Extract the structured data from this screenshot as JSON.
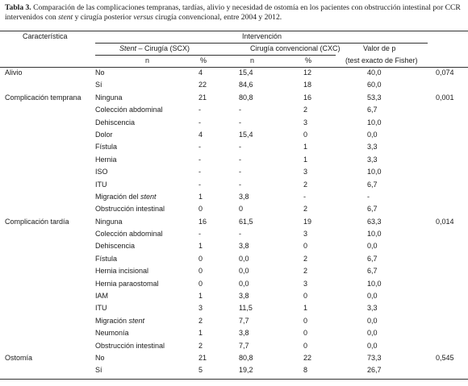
{
  "caption": {
    "label": "Tabla 3.",
    "text_a": " Comparación de las complicaciones tempranas, tardías, alivio y necesidad de ostomía en los pacientes con obstrucción intestinal por CCR intervenidos con ",
    "text_stent": "stent",
    "text_b": " y cirugía posterior ",
    "text_versus": "versus",
    "text_c": " cirugía convencional, entre 2004 y 2012."
  },
  "header": {
    "caracteristica": "Característica",
    "intervencion": "Intervención",
    "scx_italic": "Stent",
    "scx_rest": " – Cirugía (SCX)",
    "cxc": "Cirugía convencional (CXC)",
    "valor_p": "Valor de p",
    "test": "(test exacto de Fisher)",
    "n1": "n",
    "pct1": "%",
    "n2": "n",
    "pct2": "%"
  },
  "rows": [
    {
      "c0": "Alivio",
      "c1": "No",
      "n1": "4",
      "p1": "15,4",
      "n2": "12",
      "p2": "40,0",
      "pv": "0,074"
    },
    {
      "c0": "",
      "c1": "Sí",
      "n1": "22",
      "p1": "84,6",
      "n2": "18",
      "p2": "60,0",
      "pv": ""
    },
    {
      "c0": "Complicación temprana",
      "c1": "Ninguna",
      "n1": "21",
      "p1": "80,8",
      "n2": "16",
      "p2": "53,3",
      "pv": "0,001"
    },
    {
      "c0": "",
      "c1": "Colección abdominal",
      "n1": "-",
      "p1": "-",
      "n2": "2",
      "p2": "6,7",
      "pv": ""
    },
    {
      "c0": "",
      "c1": "Dehiscencia",
      "n1": "-",
      "p1": "-",
      "n2": "3",
      "p2": "10,0",
      "pv": ""
    },
    {
      "c0": "",
      "c1": "Dolor",
      "n1": "4",
      "p1": "15,4",
      "n2": "0",
      "p2": "0,0",
      "pv": ""
    },
    {
      "c0": "",
      "c1": "Fístula",
      "n1": "-",
      "p1": "-",
      "n2": "1",
      "p2": "3,3",
      "pv": ""
    },
    {
      "c0": "",
      "c1": "Hernia",
      "n1": "-",
      "p1": "-",
      "n2": "1",
      "p2": "3,3",
      "pv": ""
    },
    {
      "c0": "",
      "c1": "ISO",
      "n1": "-",
      "p1": "-",
      "n2": "3",
      "p2": "10,0",
      "pv": ""
    },
    {
      "c0": "",
      "c1": "ITU",
      "n1": "-",
      "p1": "-",
      "n2": "2",
      "p2": "6,7",
      "pv": ""
    },
    {
      "c0": "",
      "c1": "Migración del ",
      "c1i": "stent",
      "n1": "1",
      "p1": "3,8",
      "n2": "-",
      "p2": "-",
      "pv": ""
    },
    {
      "c0": "",
      "c1": "Obstrucción intestinal",
      "n1": "0",
      "p1": "0",
      "n2": "2",
      "p2": "6,7",
      "pv": ""
    },
    {
      "c0": "Complicación tardía",
      "c1": "Ninguna",
      "n1": "16",
      "p1": "61,5",
      "n2": "19",
      "p2": "63,3",
      "pv": "0,014"
    },
    {
      "c0": "",
      "c1": "Colección abdominal",
      "n1": "-",
      "p1": "-",
      "n2": "3",
      "p2": "10,0",
      "pv": ""
    },
    {
      "c0": "",
      "c1": "Dehiscencia",
      "n1": "1",
      "p1": "3,8",
      "n2": "0",
      "p2": "0,0",
      "pv": ""
    },
    {
      "c0": "",
      "c1": "Fístula",
      "n1": "0",
      "p1": "0,0",
      "n2": "2",
      "p2": "6,7",
      "pv": ""
    },
    {
      "c0": "",
      "c1": "Hernia incisional",
      "n1": "0",
      "p1": "0,0",
      "n2": "2",
      "p2": "6,7",
      "pv": ""
    },
    {
      "c0": "",
      "c1": "Hernia paraostomal",
      "n1": "0",
      "p1": "0,0",
      "n2": "3",
      "p2": "10,0",
      "pv": ""
    },
    {
      "c0": "",
      "c1": "IAM",
      "n1": "1",
      "p1": "3,8",
      "n2": "0",
      "p2": "0,0",
      "pv": ""
    },
    {
      "c0": "",
      "c1": "ITU",
      "n1": "3",
      "p1": "11,5",
      "n2": "1",
      "p2": "3,3",
      "pv": ""
    },
    {
      "c0": "",
      "c1": "Migración ",
      "c1i": "stent",
      "n1": "2",
      "p1": "7,7",
      "n2": "0",
      "p2": "0,0",
      "pv": ""
    },
    {
      "c0": "",
      "c1": "Neumonía",
      "n1": "1",
      "p1": "3,8",
      "n2": "0",
      "p2": "0,0",
      "pv": ""
    },
    {
      "c0": "",
      "c1": "Obstrucción intestinal",
      "n1": "2",
      "p1": "7,7",
      "n2": "0",
      "p2": "0,0",
      "pv": ""
    },
    {
      "c0": "Ostomía",
      "c1": "No",
      "n1": "21",
      "p1": "80,8",
      "n2": "22",
      "p2": "73,3",
      "pv": "0,545"
    },
    {
      "c0": "",
      "c1": "Sí",
      "n1": "5",
      "p1": "19,2",
      "n2": "8",
      "p2": "26,7",
      "pv": ""
    }
  ]
}
